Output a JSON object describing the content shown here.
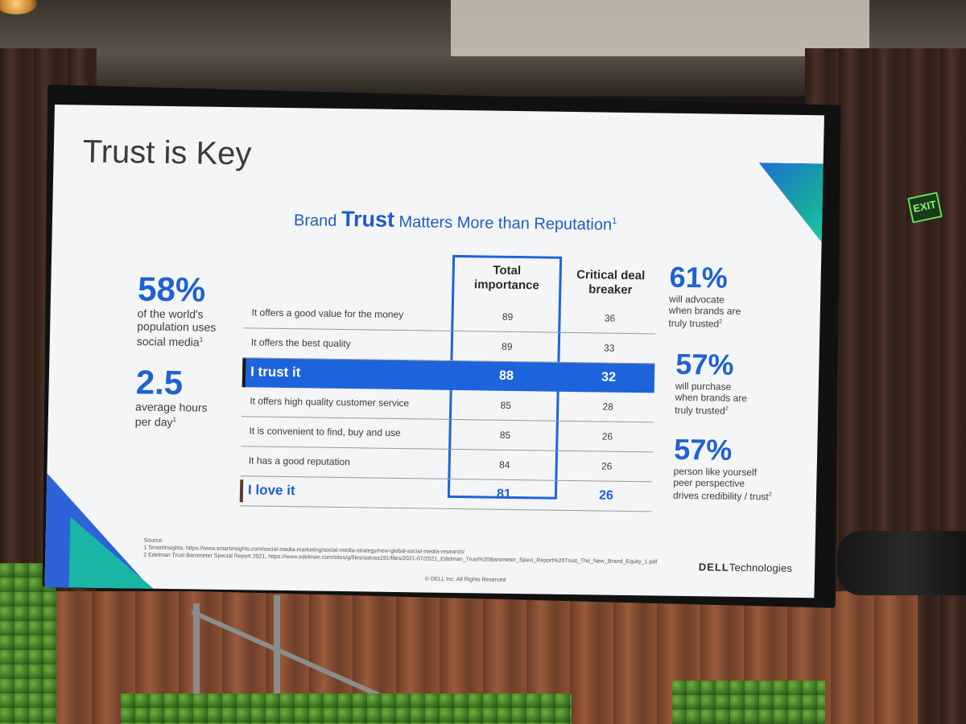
{
  "slide": {
    "title": "Trust is Key",
    "subtitle": {
      "pre": "Brand ",
      "emphasis": "Trust",
      "post": " Matters More than Reputation",
      "sup": "1"
    },
    "left_stats": [
      {
        "value": "58%",
        "desc_lines": [
          "of the world's",
          "population uses",
          "social media"
        ],
        "sup": "1"
      },
      {
        "value": "2.5",
        "desc_lines": [
          "average hours",
          "per day"
        ],
        "sup": "1"
      }
    ],
    "table": {
      "headers": {
        "col1": [
          "Total",
          "importance"
        ],
        "col2": [
          "Critical deal",
          "breaker"
        ]
      },
      "rows": [
        {
          "label": "It offers a good value for the money",
          "total": "89",
          "critical": "36",
          "style": "normal"
        },
        {
          "label": "It offers the best quality",
          "total": "89",
          "critical": "33",
          "style": "normal"
        },
        {
          "label": "I trust it",
          "total": "88",
          "critical": "32",
          "style": "highlight"
        },
        {
          "label": "It offers high quality customer service",
          "total": "85",
          "critical": "28",
          "style": "normal"
        },
        {
          "label": "It is convenient to find, buy and use",
          "total": "85",
          "critical": "26",
          "style": "normal"
        },
        {
          "label": "It has a good reputation",
          "total": "84",
          "critical": "26",
          "style": "normal"
        },
        {
          "label": "I love it",
          "total": "81",
          "critical": "26",
          "style": "love"
        }
      ]
    },
    "right_stats": [
      {
        "value": "61%",
        "desc_lines": [
          "will advocate",
          "when brands are",
          "truly trusted"
        ],
        "sup": "2"
      },
      {
        "value": "57%",
        "desc_lines": [
          "will purchase",
          "when brands are",
          "truly trusted"
        ],
        "sup": "2"
      },
      {
        "value": "57%",
        "desc_lines": [
          "person like yourself",
          "peer perspective",
          "drives credibility / trust"
        ],
        "sup": "2"
      }
    ],
    "sources": [
      "Source:",
      "1 SmartInsights, https://www.smartinsights.com/social-media-marketing/social-media-strategy/new-global-social-media-research/",
      "2 Edelman Trust Barometer Special Report 2021, https://www.edelman.com/sites/g/files/aatuss191/files/2021-07/2021_Edelman_Trust%20Barometer_Speci_Report%20Trust_The_New_Brand_Equity_1.pdf"
    ],
    "copyright": "© DELL Inc. All Rights Reserved",
    "logo": {
      "brand": "DELL",
      "suffix": "Technologies"
    }
  },
  "room": {
    "exit_sign": "EXIT"
  },
  "colors": {
    "accent_blue": "#1d63dc",
    "teal": "#17a6a0",
    "slide_bg": "#f4f5f6"
  }
}
